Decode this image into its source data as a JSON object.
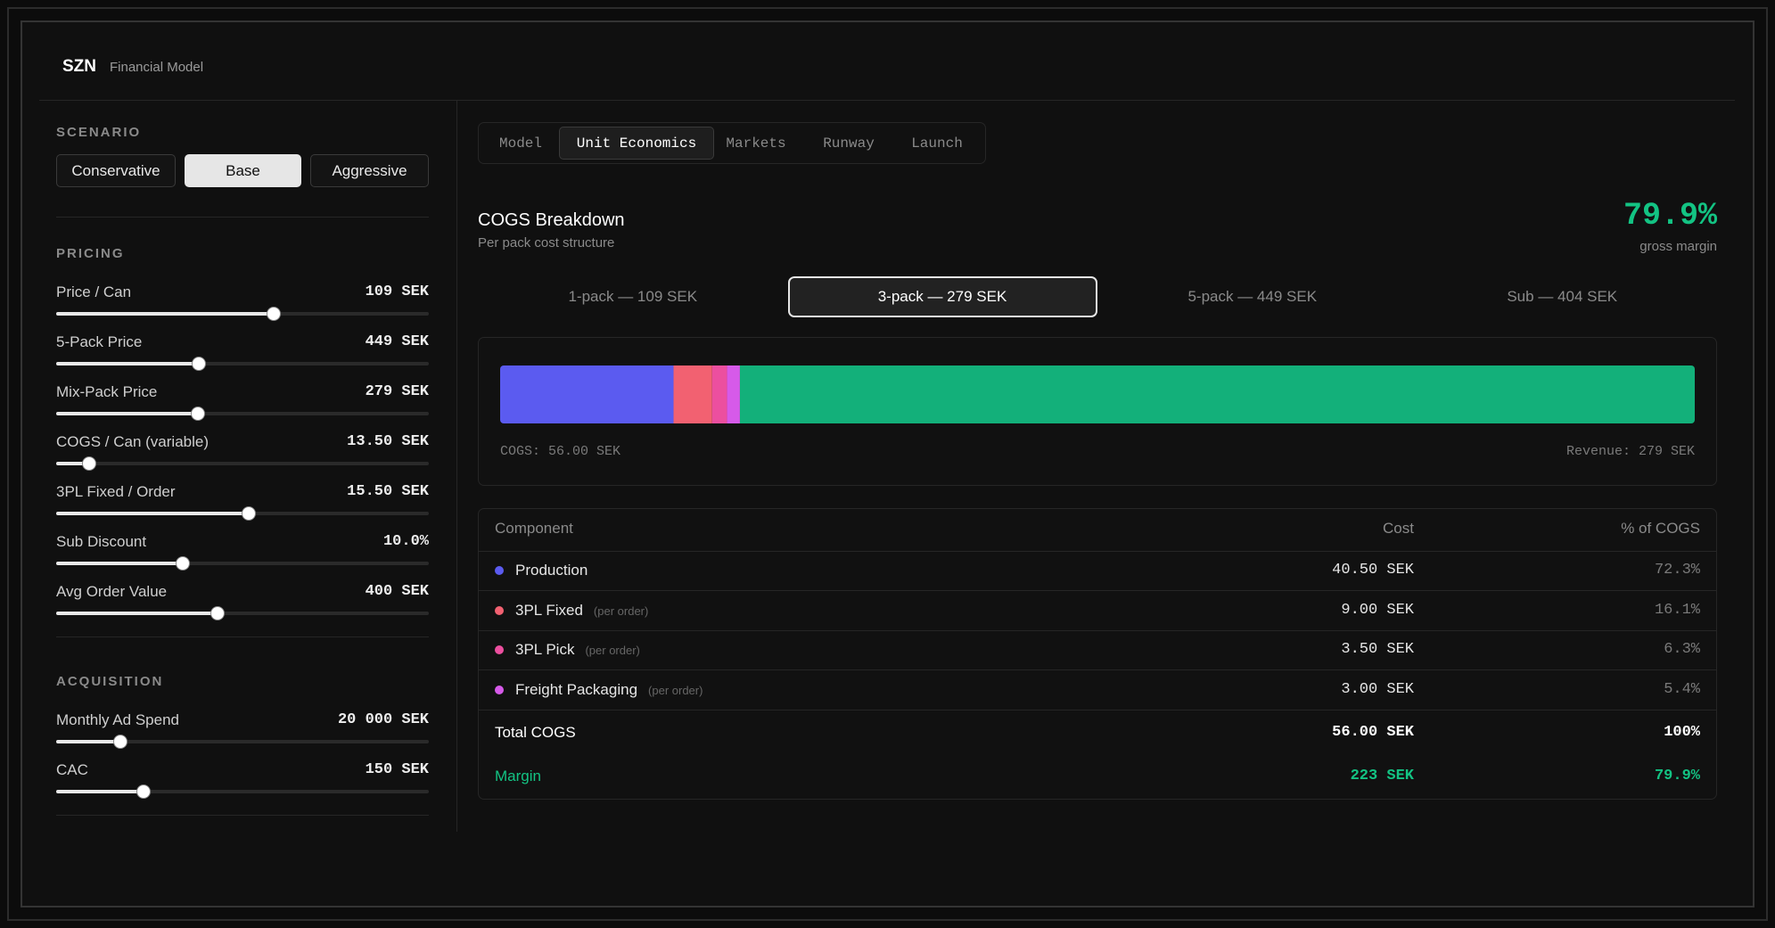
{
  "header": {
    "brand": "SZN",
    "subtitle": "Financial Model"
  },
  "sidebar": {
    "scenario": {
      "label": "SCENARIO",
      "options": [
        "Conservative",
        "Base",
        "Aggressive"
      ],
      "active": 1
    },
    "sections": [
      {
        "title": "PRICING",
        "sliders": [
          {
            "label": "Price / Can",
            "value": "109 SEK"
          },
          {
            "label": "5-Pack Price",
            "value": "449 SEK"
          },
          {
            "label": "Mix-Pack Price",
            "value": "279 SEK"
          },
          {
            "label": "COGS / Can (variable)",
            "value": "13.50 SEK"
          },
          {
            "label": "3PL Fixed / Order",
            "value": "15.50 SEK"
          },
          {
            "label": "Sub Discount",
            "value": "10.0%"
          },
          {
            "label": "Avg Order Value",
            "value": "400 SEK"
          }
        ]
      },
      {
        "title": "ACQUISITION",
        "sliders": [
          {
            "label": "Monthly Ad Spend",
            "value": "20 000 SEK"
          },
          {
            "label": "CAC",
            "value": "150 SEK"
          }
        ]
      }
    ]
  },
  "tabs": {
    "items": [
      "Model",
      "Unit Economics",
      "Markets",
      "Runway",
      "Launch"
    ],
    "active": 1
  },
  "panel": {
    "title": "COGS Breakdown",
    "subtitle": "Per pack cost structure",
    "margin_value": "79.9%",
    "margin_label": "gross margin",
    "packs": {
      "items": [
        "1-pack — 109 SEK",
        "3-pack — 279 SEK",
        "5-pack — 449 SEK",
        "Sub — 404 SEK"
      ],
      "active": 1
    },
    "bar": {
      "cogs_label": "COGS: 56.00 SEK",
      "revenue_label": "Revenue: 279 SEK"
    },
    "table": {
      "columns": [
        "Component",
        "Cost",
        "% of COGS"
      ],
      "rows": [
        {
          "name": "Production",
          "color": "#5b5bf0",
          "cost": {
            "value": 40.5,
            "label": "40.50 SEK"
          },
          "share": "72.3%"
        },
        {
          "name": "3PL Fixed",
          "note": "(per order)",
          "color": "#f26171",
          "cost": {
            "value": 9,
            "label": "9.00 SEK"
          },
          "share": "16.1%"
        },
        {
          "name": "3PL Pick",
          "note": "(per order)",
          "color": "#ec4f9f",
          "cost": {
            "value": 3.5,
            "label": "3.50 SEK"
          },
          "share": "6.3%"
        },
        {
          "name": "Freight Packaging",
          "note": "(per order)",
          "color": "#d65ae9",
          "cost": {
            "value": 3,
            "label": "3.00 SEK"
          },
          "share": "5.4%"
        }
      ],
      "total": {
        "name": "Total COGS",
        "cost": "56.00 SEK",
        "share": "100%"
      },
      "margin": {
        "name": "Margin",
        "color": "#13b07a",
        "cost": {
          "value": 223,
          "label": "223 SEK"
        },
        "share": "79.9%"
      }
    }
  }
}
